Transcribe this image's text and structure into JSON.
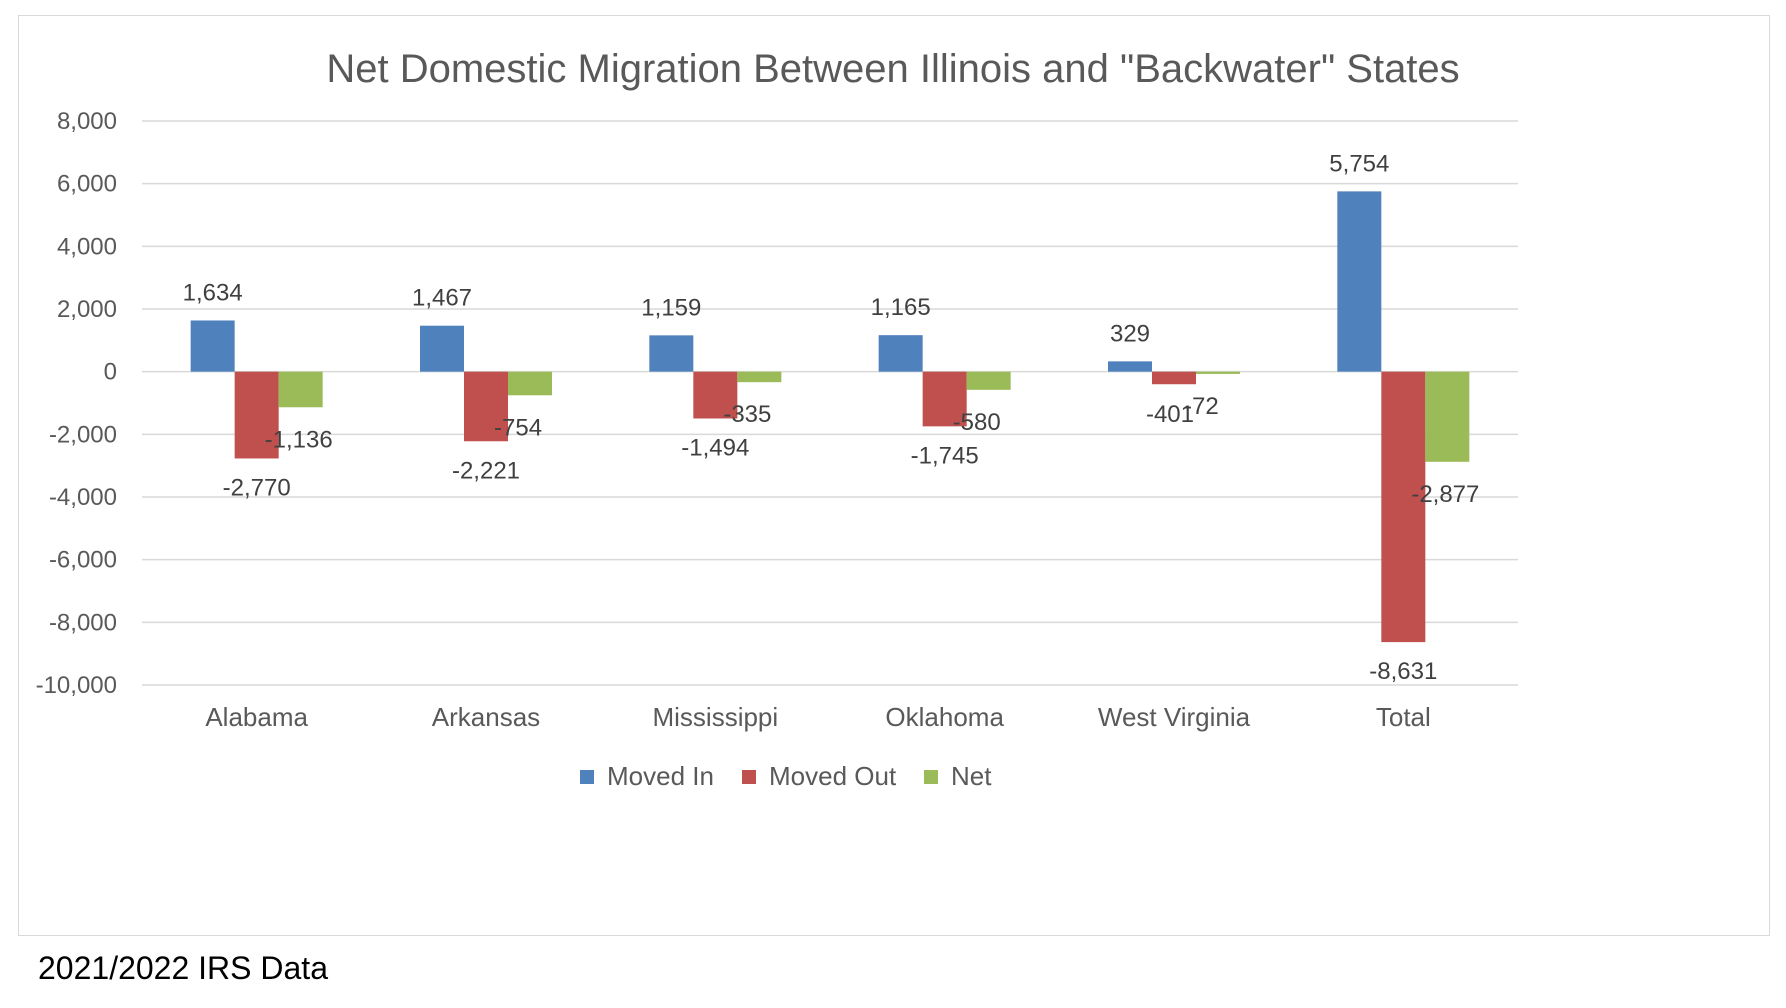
{
  "chart_data": {
    "type": "bar",
    "title": "Net Domestic Migration Between Illinois and \"Backwater\" States",
    "categories": [
      "Alabama",
      "Arkansas",
      "Mississippi",
      "Oklahoma",
      "West Virginia",
      "Total"
    ],
    "series": [
      {
        "name": "Moved In",
        "color": "#4f81bd",
        "values": [
          1634,
          1467,
          1159,
          1165,
          329,
          5754
        ]
      },
      {
        "name": "Moved Out",
        "color": "#c0504d",
        "values": [
          -2770,
          -2221,
          -1494,
          -1745,
          -401,
          -8631
        ]
      },
      {
        "name": "Net",
        "color": "#9bbb59",
        "values": [
          -1136,
          -754,
          -335,
          -580,
          -72,
          -2877
        ]
      }
    ],
    "data_labels": [
      [
        "1,634",
        "1,467",
        "1,159",
        "1,165",
        "329",
        "5,754"
      ],
      [
        "-2,770",
        "-2,221",
        "-1,494",
        "-1,745",
        "-401",
        "-8,631"
      ],
      [
        "-1,136",
        "-754",
        "-335",
        "-580",
        "-72",
        "-2,877"
      ]
    ],
    "yticks": [
      8000,
      6000,
      4000,
      2000,
      0,
      -2000,
      -4000,
      -6000,
      -8000,
      -10000
    ],
    "ytick_labels": [
      "8,000",
      "6,000",
      "4,000",
      "2,000",
      "0",
      "-2,000",
      "-4,000",
      "-6,000",
      "-8,000",
      "-10,000"
    ],
    "ylim": [
      -10000,
      8000
    ],
    "grid": true,
    "legend_position": "bottom",
    "xlabel": "",
    "ylabel": ""
  },
  "source_note": "2021/2022 IRS Data"
}
